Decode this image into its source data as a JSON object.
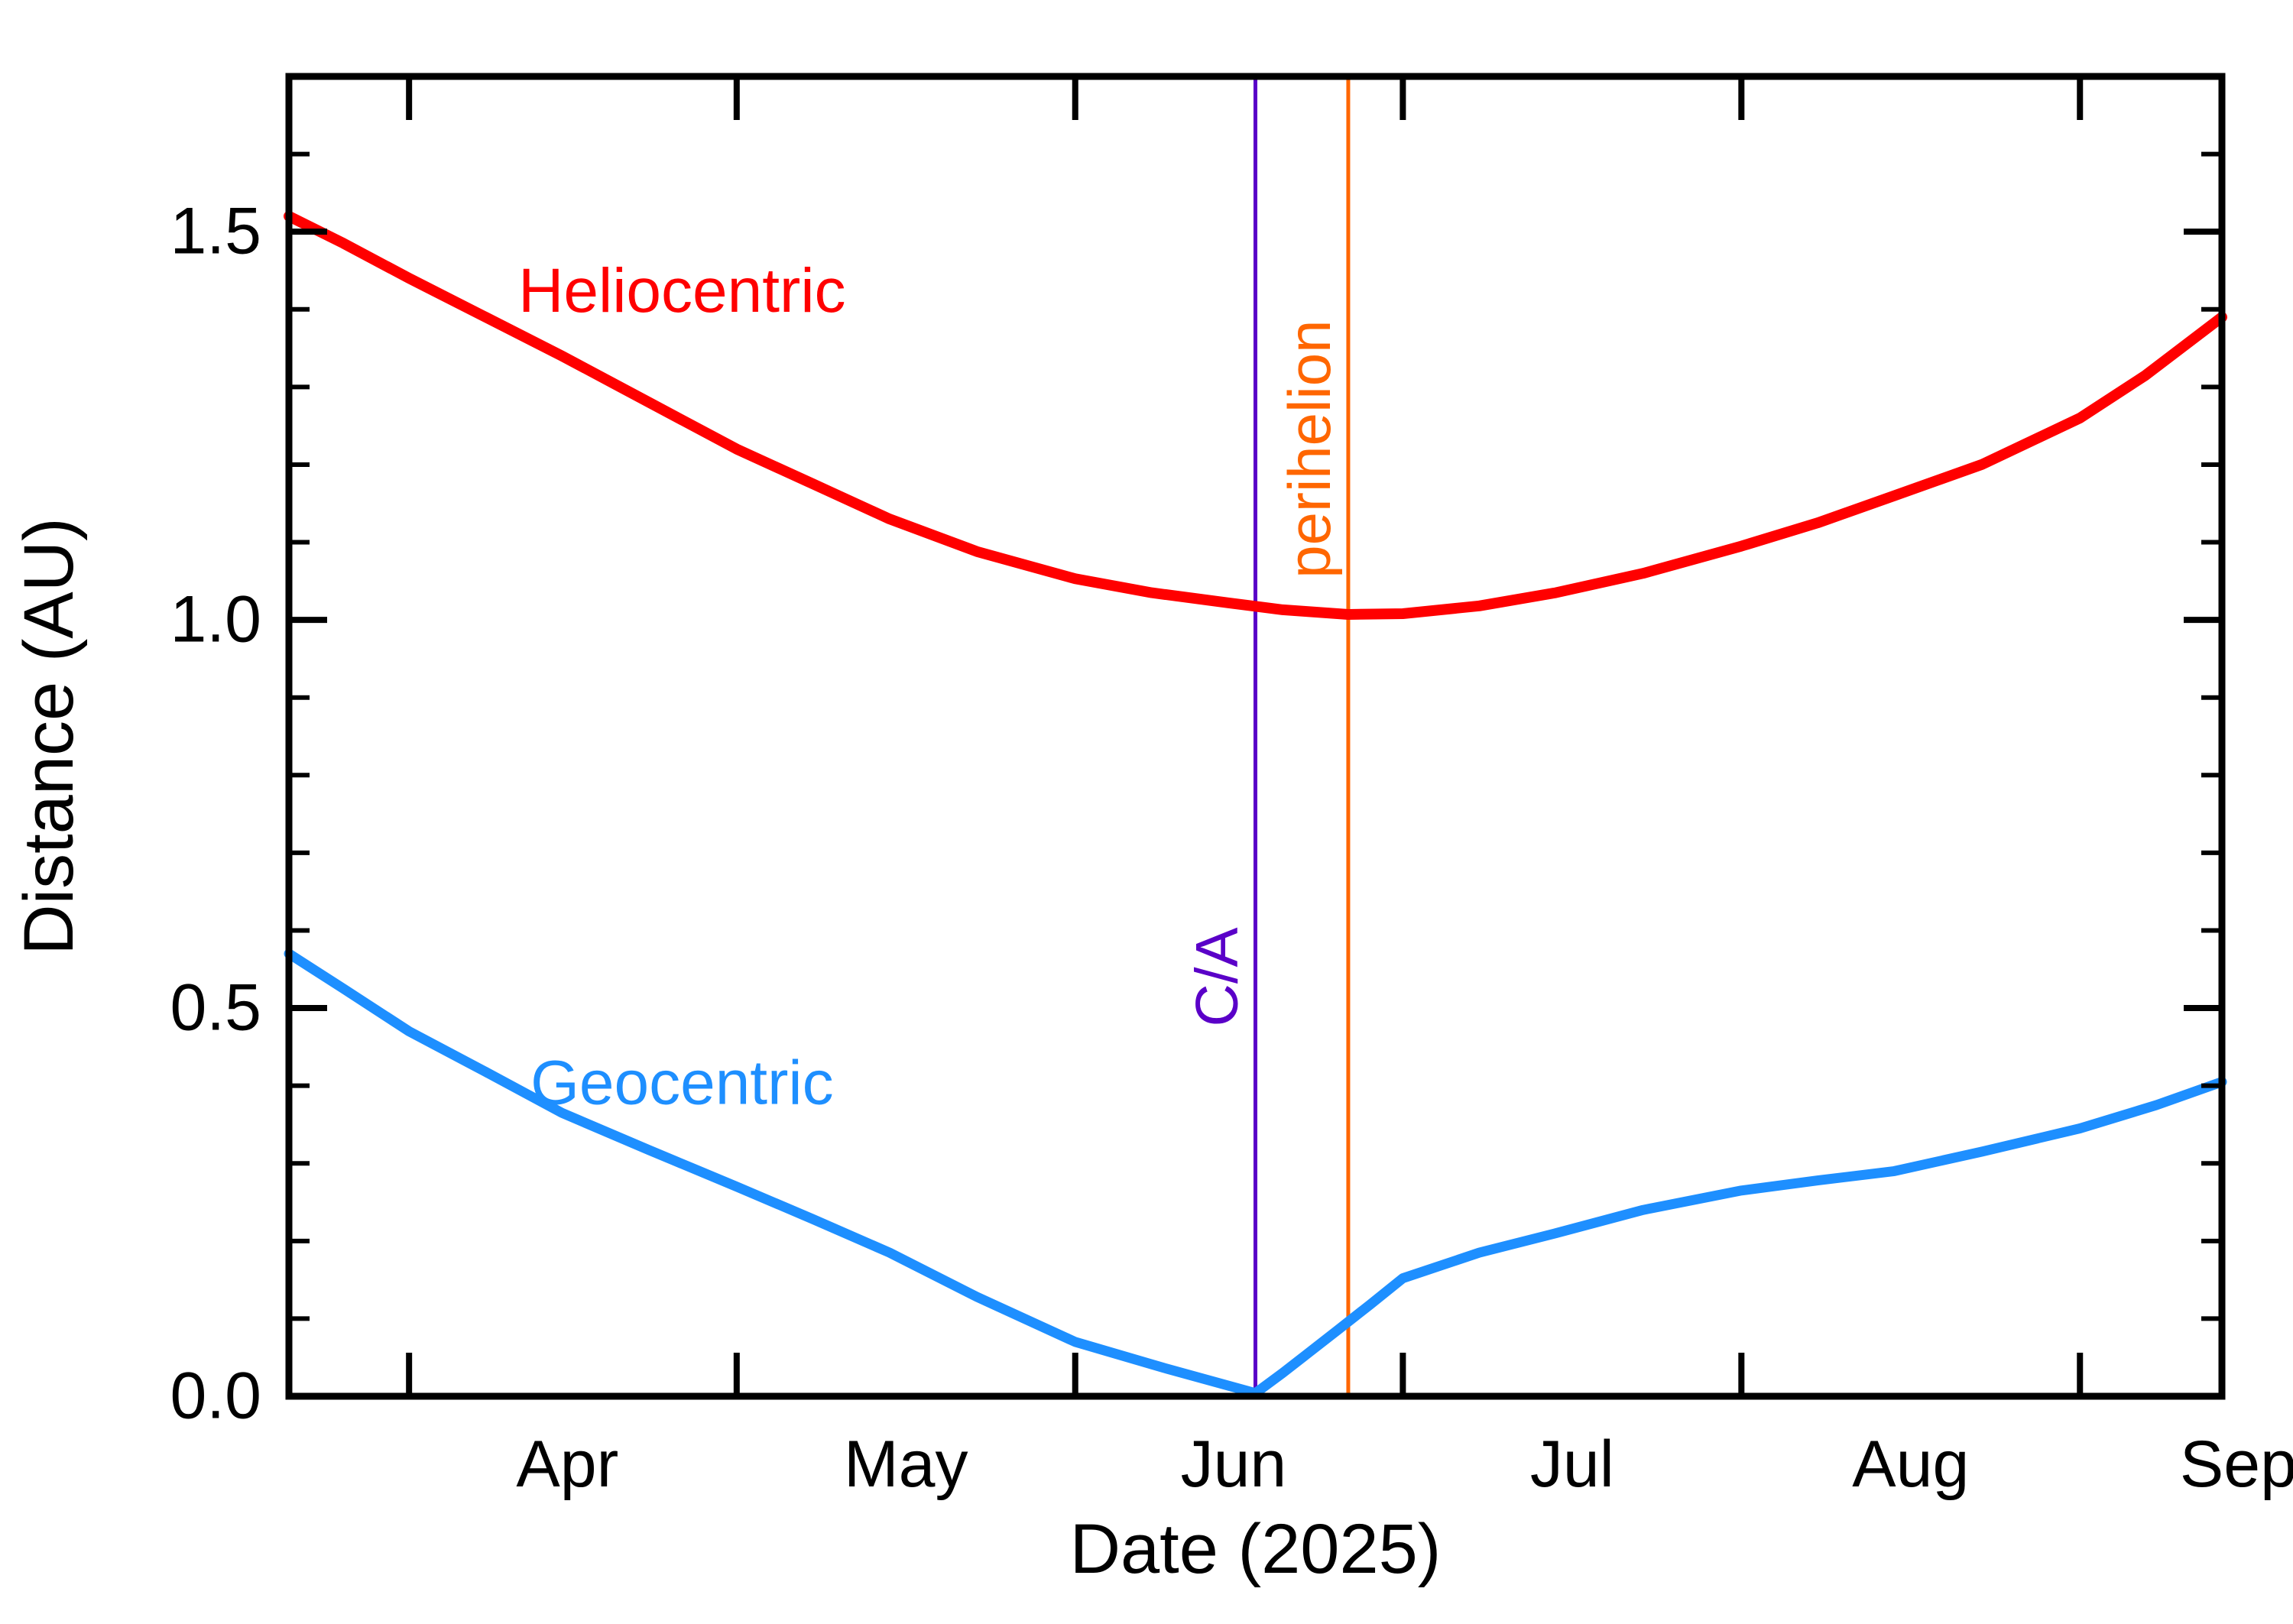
{
  "chart_data": {
    "type": "line",
    "title": "",
    "xlabel": "Date (2025)",
    "ylabel": "Distance (AU)",
    "x_unit": "days_from_2025-03-21",
    "x_domain": [
      0,
      177
    ],
    "ylim": [
      0,
      1.7
    ],
    "grid": false,
    "legend_position": "inline-labels",
    "axis_color": "#000000",
    "y_major_ticks": [
      {
        "value": 0.0,
        "label": "0.0"
      },
      {
        "value": 0.5,
        "label": "0.5"
      },
      {
        "value": 1.0,
        "label": "1.0"
      },
      {
        "value": 1.5,
        "label": "1.5"
      }
    ],
    "y_minor_step": 0.1,
    "months": [
      {
        "label": "Apr",
        "start_day": 11,
        "label_day": 25.5
      },
      {
        "label": "May",
        "start_day": 41,
        "label_day": 56.5
      },
      {
        "label": "Jun",
        "start_day": 72,
        "label_day": 86.5
      },
      {
        "label": "Jul",
        "start_day": 102,
        "label_day": 117.5
      },
      {
        "label": "Aug",
        "start_day": 133,
        "label_day": 148.5
      },
      {
        "label": "Sep",
        "start_day": 164,
        "label_day": 178.5
      }
    ],
    "series": [
      {
        "name": "Heliocentric",
        "color": "#ff0000",
        "stroke_width": 14,
        "label_pos": {
          "day": 36,
          "au": 1.425
        },
        "points": [
          [
            0,
            1.52
          ],
          [
            5,
            1.485
          ],
          [
            11,
            1.44
          ],
          [
            18,
            1.39
          ],
          [
            25,
            1.34
          ],
          [
            33,
            1.28
          ],
          [
            41,
            1.22
          ],
          [
            48,
            1.175
          ],
          [
            55,
            1.13
          ],
          [
            63,
            1.088
          ],
          [
            72,
            1.053
          ],
          [
            79,
            1.035
          ],
          [
            86,
            1.022
          ],
          [
            91,
            1.013
          ],
          [
            97,
            1.007
          ],
          [
            102,
            1.008
          ],
          [
            109,
            1.018
          ],
          [
            116,
            1.035
          ],
          [
            124,
            1.06
          ],
          [
            133,
            1.095
          ],
          [
            140,
            1.125
          ],
          [
            147,
            1.16
          ],
          [
            155,
            1.2
          ],
          [
            164,
            1.26
          ],
          [
            170,
            1.315
          ],
          [
            177,
            1.39
          ]
        ]
      },
      {
        "name": "Geocentric",
        "color": "#1e8fff",
        "stroke_width": 13,
        "label_pos": {
          "day": 36,
          "au": 0.405
        },
        "points": [
          [
            0,
            0.57
          ],
          [
            5,
            0.525
          ],
          [
            11,
            0.47
          ],
          [
            18,
            0.418
          ],
          [
            25,
            0.365
          ],
          [
            33,
            0.317
          ],
          [
            41,
            0.27
          ],
          [
            48,
            0.228
          ],
          [
            55,
            0.185
          ],
          [
            63,
            0.128
          ],
          [
            72,
            0.07
          ],
          [
            80,
            0.037
          ],
          [
            88.5,
            0.004
          ],
          [
            91,
            0.03
          ],
          [
            93,
            0.052
          ],
          [
            96,
            0.085
          ],
          [
            99,
            0.118
          ],
          [
            102,
            0.152
          ],
          [
            109,
            0.185
          ],
          [
            116,
            0.21
          ],
          [
            124,
            0.24
          ],
          [
            133,
            0.265
          ],
          [
            140,
            0.278
          ],
          [
            147,
            0.29
          ],
          [
            155,
            0.315
          ],
          [
            164,
            0.345
          ],
          [
            171,
            0.375
          ],
          [
            177,
            0.405
          ]
        ]
      }
    ],
    "event_lines": [
      {
        "label": "C/A",
        "color": "#5a00c8",
        "stroke_width": 5,
        "day": 88.5,
        "label_au": 0.54
      },
      {
        "label": "perihelion",
        "color": "#ff6600",
        "stroke_width": 5,
        "day": 97,
        "label_au": 1.22
      }
    ]
  }
}
